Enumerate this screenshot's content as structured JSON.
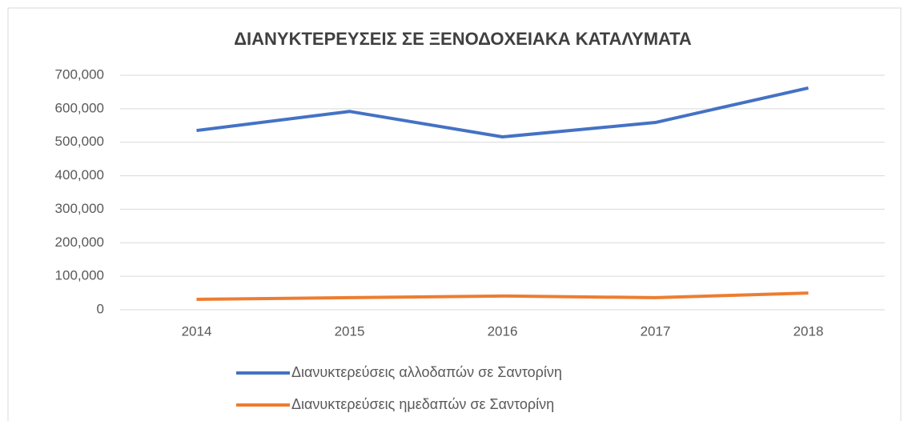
{
  "chart_data": {
    "type": "line",
    "title": "ΔΙΑΝΥΚΤΕΡΕΥΣΕΙΣ ΣΕ ΞΕΝΟΔΟΧΕΙΑΚΑ ΚΑΤΑΛΥΜΑΤΑ",
    "categories": [
      "2014",
      "2015",
      "2016",
      "2017",
      "2018"
    ],
    "series": [
      {
        "name": "Διανυκτερεύσεις αλλοδαπών σε Σαντορίνη",
        "color": "#4472c4",
        "values": [
          535000,
          592000,
          516000,
          559000,
          662000
        ]
      },
      {
        "name": "Διανυκτερεύσεις ημεδαπών σε Σαντορίνη",
        "color": "#ed7d31",
        "values": [
          31000,
          36000,
          41000,
          36000,
          50000
        ]
      }
    ],
    "ylim": [
      0,
      700000
    ],
    "yticks": [
      0,
      {
        "value": 100000,
        "label": "100,000"
      },
      {
        "value": 200000,
        "label": "200,000"
      },
      {
        "value": 300000,
        "label": "300,000"
      },
      {
        "value": 400000,
        "label": "400,000"
      },
      {
        "value": 500000,
        "label": "500,000"
      },
      {
        "value": 600000,
        "label": "600,000"
      },
      {
        "value": 700000,
        "label": "700,000"
      }
    ],
    "grid": true
  }
}
